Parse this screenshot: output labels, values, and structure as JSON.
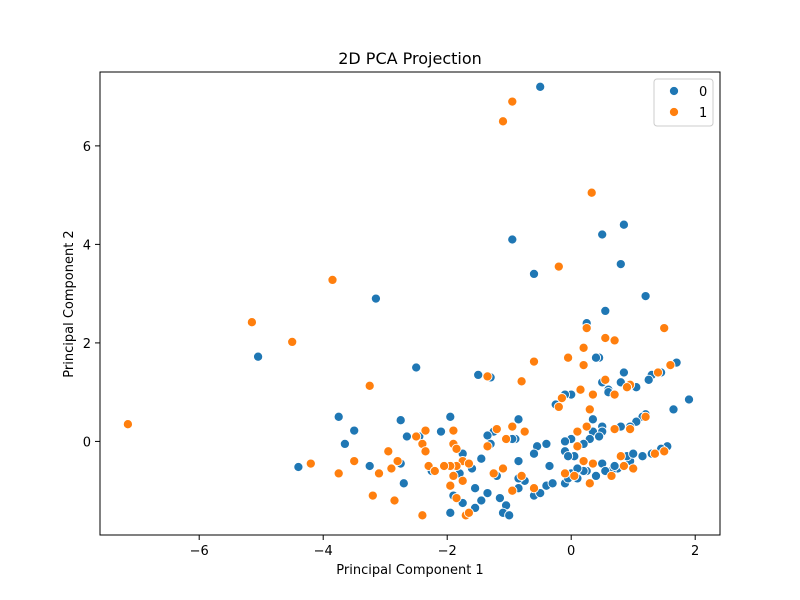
{
  "chart_data": {
    "type": "scatter",
    "title": "2D PCA Projection",
    "xlabel": "Principal Component 1",
    "ylabel": "Principal Component 2",
    "xlim": [
      -7.6,
      2.4
    ],
    "ylim": [
      -1.9,
      7.5
    ],
    "xticks": [
      -6,
      -4,
      -2,
      0,
      2
    ],
    "yticks": [
      0,
      2,
      4,
      6
    ],
    "tick_labels_x": [
      "−6",
      "−4",
      "−2",
      "0",
      "2"
    ],
    "tick_labels_y": [
      "0",
      "2",
      "4",
      "6"
    ],
    "grid": false,
    "legend": {
      "position": "top-right",
      "entries": [
        "0",
        "1"
      ]
    },
    "series": [
      {
        "name": "0",
        "color": "#1f77b4",
        "points": [
          [
            -0.5,
            7.2
          ],
          [
            -0.95,
            4.1
          ],
          [
            0.5,
            4.2
          ],
          [
            0.85,
            4.4
          ],
          [
            0.8,
            3.6
          ],
          [
            -0.6,
            3.4
          ],
          [
            1.2,
            2.95
          ],
          [
            -3.15,
            2.9
          ],
          [
            0.55,
            2.65
          ],
          [
            0.25,
            2.4
          ],
          [
            -5.05,
            1.72
          ],
          [
            0.45,
            1.7
          ],
          [
            0.4,
            1.7
          ],
          [
            -2.5,
            1.5
          ],
          [
            1.7,
            1.6
          ],
          [
            1.45,
            1.4
          ],
          [
            0.85,
            1.4
          ],
          [
            1.3,
            1.35
          ],
          [
            -1.5,
            1.35
          ],
          [
            -1.3,
            1.3
          ],
          [
            0.8,
            1.2
          ],
          [
            0.5,
            1.2
          ],
          [
            1.25,
            1.25
          ],
          [
            1.05,
            1.1
          ],
          [
            0.6,
            1.05
          ],
          [
            0.6,
            1.0
          ],
          [
            0.0,
            0.95
          ],
          [
            -0.1,
            0.95
          ],
          [
            -0.25,
            0.75
          ],
          [
            1.9,
            0.85
          ],
          [
            -0.85,
            0.45
          ],
          [
            0.35,
            0.45
          ],
          [
            -3.75,
            0.5
          ],
          [
            -1.95,
            0.5
          ],
          [
            -2.75,
            0.43
          ],
          [
            1.2,
            0.55
          ],
          [
            1.15,
            0.5
          ],
          [
            1.05,
            0.4
          ],
          [
            0.8,
            0.3
          ],
          [
            0.95,
            0.3
          ],
          [
            0.5,
            0.3
          ],
          [
            0.35,
            0.2
          ],
          [
            1.65,
            0.65
          ],
          [
            -3.5,
            0.22
          ],
          [
            -2.1,
            0.2
          ],
          [
            -1.25,
            0.2
          ],
          [
            -1.35,
            0.12
          ],
          [
            0.5,
            0.2
          ],
          [
            0.45,
            0.1
          ],
          [
            -0.9,
            0.05
          ],
          [
            0.3,
            0.05
          ],
          [
            -2.65,
            0.1
          ],
          [
            -2.45,
            0.1
          ],
          [
            -3.65,
            -0.05
          ],
          [
            0.0,
            0.05
          ],
          [
            -0.1,
            0.0
          ],
          [
            -0.4,
            -0.05
          ],
          [
            -0.55,
            -0.1
          ],
          [
            -1.3,
            -0.05
          ],
          [
            -0.95,
            0.05
          ],
          [
            0.2,
            -0.05
          ],
          [
            1.55,
            -0.1
          ],
          [
            1.45,
            -0.15
          ],
          [
            1.3,
            -0.25
          ],
          [
            1.15,
            -0.3
          ],
          [
            0.95,
            -0.4
          ],
          [
            0.85,
            -0.5
          ],
          [
            0.75,
            -0.55
          ],
          [
            0.65,
            -0.6
          ],
          [
            0.5,
            -0.45
          ],
          [
            0.25,
            -0.6
          ],
          [
            0.0,
            -0.65
          ],
          [
            -0.1,
            -0.2
          ],
          [
            0.05,
            -0.3
          ],
          [
            -0.05,
            -0.3
          ],
          [
            -0.35,
            -0.5
          ],
          [
            -0.6,
            -0.25
          ],
          [
            -0.85,
            -0.4
          ],
          [
            -1.75,
            -0.25
          ],
          [
            -1.45,
            -0.35
          ],
          [
            -1.6,
            -0.55
          ],
          [
            -1.55,
            -0.95
          ],
          [
            -1.9,
            -1.1
          ],
          [
            -1.35,
            -1.05
          ],
          [
            -1.15,
            -1.15
          ],
          [
            -1.05,
            -1.3
          ],
          [
            -1.1,
            -1.45
          ],
          [
            -1.0,
            -1.5
          ],
          [
            -1.55,
            -1.35
          ],
          [
            -1.45,
            -1.2
          ],
          [
            -1.75,
            -1.25
          ],
          [
            -1.95,
            -1.45
          ],
          [
            -0.85,
            -0.95
          ],
          [
            -0.75,
            -0.8
          ],
          [
            -0.6,
            -1.1
          ],
          [
            -0.5,
            -1.05
          ],
          [
            -0.4,
            -0.9
          ],
          [
            -0.3,
            -0.85
          ],
          [
            -0.1,
            -0.85
          ],
          [
            0.2,
            -0.6
          ],
          [
            0.1,
            -0.75
          ],
          [
            0.4,
            -0.7
          ],
          [
            0.55,
            -0.6
          ],
          [
            0.7,
            -0.5
          ],
          [
            0.9,
            -0.3
          ],
          [
            1.0,
            -0.25
          ],
          [
            -2.75,
            -0.45
          ],
          [
            -3.25,
            -0.5
          ],
          [
            -4.4,
            -0.52
          ],
          [
            -2.7,
            -0.85
          ],
          [
            -1.8,
            -0.65
          ],
          [
            -1.2,
            -0.7
          ],
          [
            -0.85,
            -0.75
          ],
          [
            -2.25,
            -0.6
          ],
          [
            -0.05,
            -0.75
          ],
          [
            0.1,
            -0.55
          ]
        ]
      },
      {
        "name": "1",
        "color": "#ff7f0e",
        "points": [
          [
            -0.95,
            6.9
          ],
          [
            -1.1,
            6.5
          ],
          [
            0.33,
            5.05
          ],
          [
            -0.2,
            3.55
          ],
          [
            -3.85,
            3.28
          ],
          [
            -5.15,
            2.42
          ],
          [
            1.5,
            2.3
          ],
          [
            0.25,
            2.3
          ],
          [
            -4.5,
            2.02
          ],
          [
            0.55,
            2.1
          ],
          [
            0.7,
            2.05
          ],
          [
            0.2,
            1.9
          ],
          [
            -0.05,
            1.7
          ],
          [
            -0.6,
            1.62
          ],
          [
            0.2,
            1.55
          ],
          [
            1.6,
            1.55
          ],
          [
            1.4,
            1.4
          ],
          [
            -3.25,
            1.13
          ],
          [
            -1.35,
            1.32
          ],
          [
            -0.8,
            1.22
          ],
          [
            0.55,
            1.25
          ],
          [
            0.95,
            1.15
          ],
          [
            0.9,
            1.1
          ],
          [
            0.15,
            1.05
          ],
          [
            0.35,
            0.95
          ],
          [
            0.7,
            0.95
          ],
          [
            -0.15,
            0.88
          ],
          [
            1.2,
            0.5
          ],
          [
            0.7,
            0.25
          ],
          [
            0.95,
            0.25
          ],
          [
            -0.2,
            0.7
          ],
          [
            0.3,
            0.65
          ],
          [
            -0.95,
            0.3
          ],
          [
            -0.75,
            0.2
          ],
          [
            -1.2,
            0.25
          ],
          [
            -2.35,
            0.22
          ],
          [
            -1.9,
            0.22
          ],
          [
            -1.05,
            0.05
          ],
          [
            0.1,
            0.2
          ],
          [
            0.25,
            0.3
          ],
          [
            -2.5,
            0.1
          ],
          [
            -2.4,
            -0.05
          ],
          [
            -1.9,
            -0.05
          ],
          [
            -1.35,
            -0.1
          ],
          [
            -1.85,
            -0.15
          ],
          [
            -1.75,
            -0.4
          ],
          [
            -1.65,
            -0.45
          ],
          [
            -1.85,
            -0.5
          ],
          [
            -1.95,
            -0.5
          ],
          [
            -2.05,
            -0.5
          ],
          [
            -2.3,
            -0.5
          ],
          [
            -2.35,
            -0.2
          ],
          [
            -2.95,
            -0.2
          ],
          [
            -2.8,
            -0.4
          ],
          [
            -2.9,
            -0.55
          ],
          [
            -3.5,
            -0.4
          ],
          [
            -3.75,
            -0.65
          ],
          [
            -3.1,
            -0.65
          ],
          [
            -4.2,
            -0.45
          ],
          [
            -7.15,
            0.35
          ],
          [
            -2.2,
            -0.6
          ],
          [
            -1.9,
            -0.7
          ],
          [
            -1.75,
            -0.8
          ],
          [
            -1.95,
            -0.9
          ],
          [
            -1.85,
            -1.15
          ],
          [
            -3.2,
            -1.1
          ],
          [
            -2.85,
            -1.2
          ],
          [
            -2.4,
            -1.5
          ],
          [
            -1.7,
            -1.5
          ],
          [
            -1.65,
            -1.45
          ],
          [
            -1.25,
            -0.65
          ],
          [
            -1.1,
            -0.55
          ],
          [
            -0.8,
            -0.7
          ],
          [
            -0.95,
            -1.0
          ],
          [
            -0.6,
            -0.95
          ],
          [
            0.1,
            -0.1
          ],
          [
            0.2,
            -0.4
          ],
          [
            0.35,
            -0.45
          ],
          [
            0.3,
            -0.85
          ],
          [
            0.65,
            -0.7
          ],
          [
            0.85,
            -0.5
          ],
          [
            0.8,
            -0.3
          ],
          [
            1.35,
            -0.25
          ],
          [
            1.5,
            -0.2
          ],
          [
            0.05,
            -0.7
          ],
          [
            -0.1,
            -0.65
          ],
          [
            1.0,
            -0.55
          ]
        ]
      }
    ]
  }
}
